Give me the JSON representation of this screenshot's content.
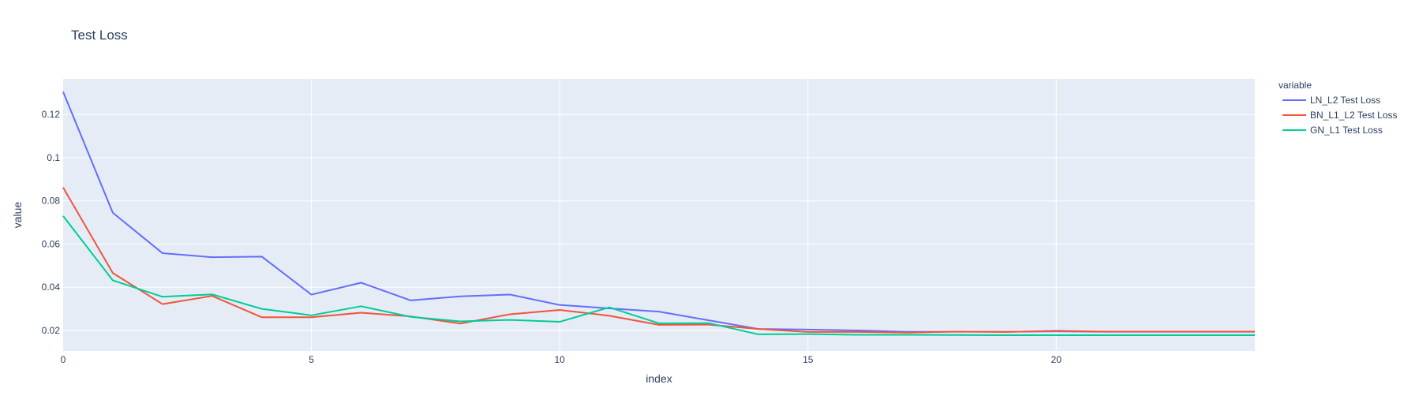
{
  "chart_data": {
    "type": "line",
    "title": "Test Loss",
    "xlabel": "index",
    "ylabel": "value",
    "xlim": [
      0,
      24
    ],
    "ylim": [
      0.0105,
      0.1365
    ],
    "x_ticks": [
      0,
      5,
      10,
      15,
      20
    ],
    "y_ticks": [
      0.02,
      0.04,
      0.06,
      0.08,
      0.1,
      0.12
    ],
    "y_tick_labels": [
      "0.02",
      "0.04",
      "0.06",
      "0.08",
      "0.1",
      "0.12"
    ],
    "grid": true,
    "legend": {
      "title": "variable",
      "placement": "right"
    },
    "x": [
      0,
      1,
      2,
      3,
      4,
      5,
      6,
      7,
      8,
      9,
      10,
      11,
      12,
      13,
      14,
      15,
      16,
      17,
      18,
      19,
      20,
      21,
      22,
      23,
      24
    ],
    "series": [
      {
        "name": "LN_L2 Test Loss",
        "color": "#636efa",
        "values": [
          0.1305,
          0.0745,
          0.0558,
          0.0539,
          0.0542,
          0.0366,
          0.0421,
          0.0339,
          0.0358,
          0.0366,
          0.0318,
          0.0302,
          0.0287,
          0.0247,
          0.0207,
          0.0204,
          0.02,
          0.0194,
          0.0194,
          0.0194,
          0.0196,
          0.0194,
          0.0194,
          0.0194,
          0.0194
        ]
      },
      {
        "name": "BN_L1_L2 Test Loss",
        "color": "#ef553b",
        "values": [
          0.0862,
          0.0466,
          0.0322,
          0.036,
          0.0261,
          0.0261,
          0.0282,
          0.0265,
          0.0232,
          0.0275,
          0.0295,
          0.0268,
          0.0226,
          0.0227,
          0.0207,
          0.0193,
          0.0193,
          0.019,
          0.0195,
          0.0193,
          0.0198,
          0.0195,
          0.0195,
          0.0195,
          0.0195
        ]
      },
      {
        "name": "GN_L1 Test Loss",
        "color": "#00cc96",
        "values": [
          0.073,
          0.0432,
          0.0356,
          0.0367,
          0.03,
          0.027,
          0.0312,
          0.0263,
          0.0242,
          0.0249,
          0.024,
          0.0307,
          0.0233,
          0.0234,
          0.0182,
          0.0183,
          0.018,
          0.018,
          0.0179,
          0.0178,
          0.0178,
          0.0178,
          0.0178,
          0.0178,
          0.0178
        ]
      }
    ]
  }
}
